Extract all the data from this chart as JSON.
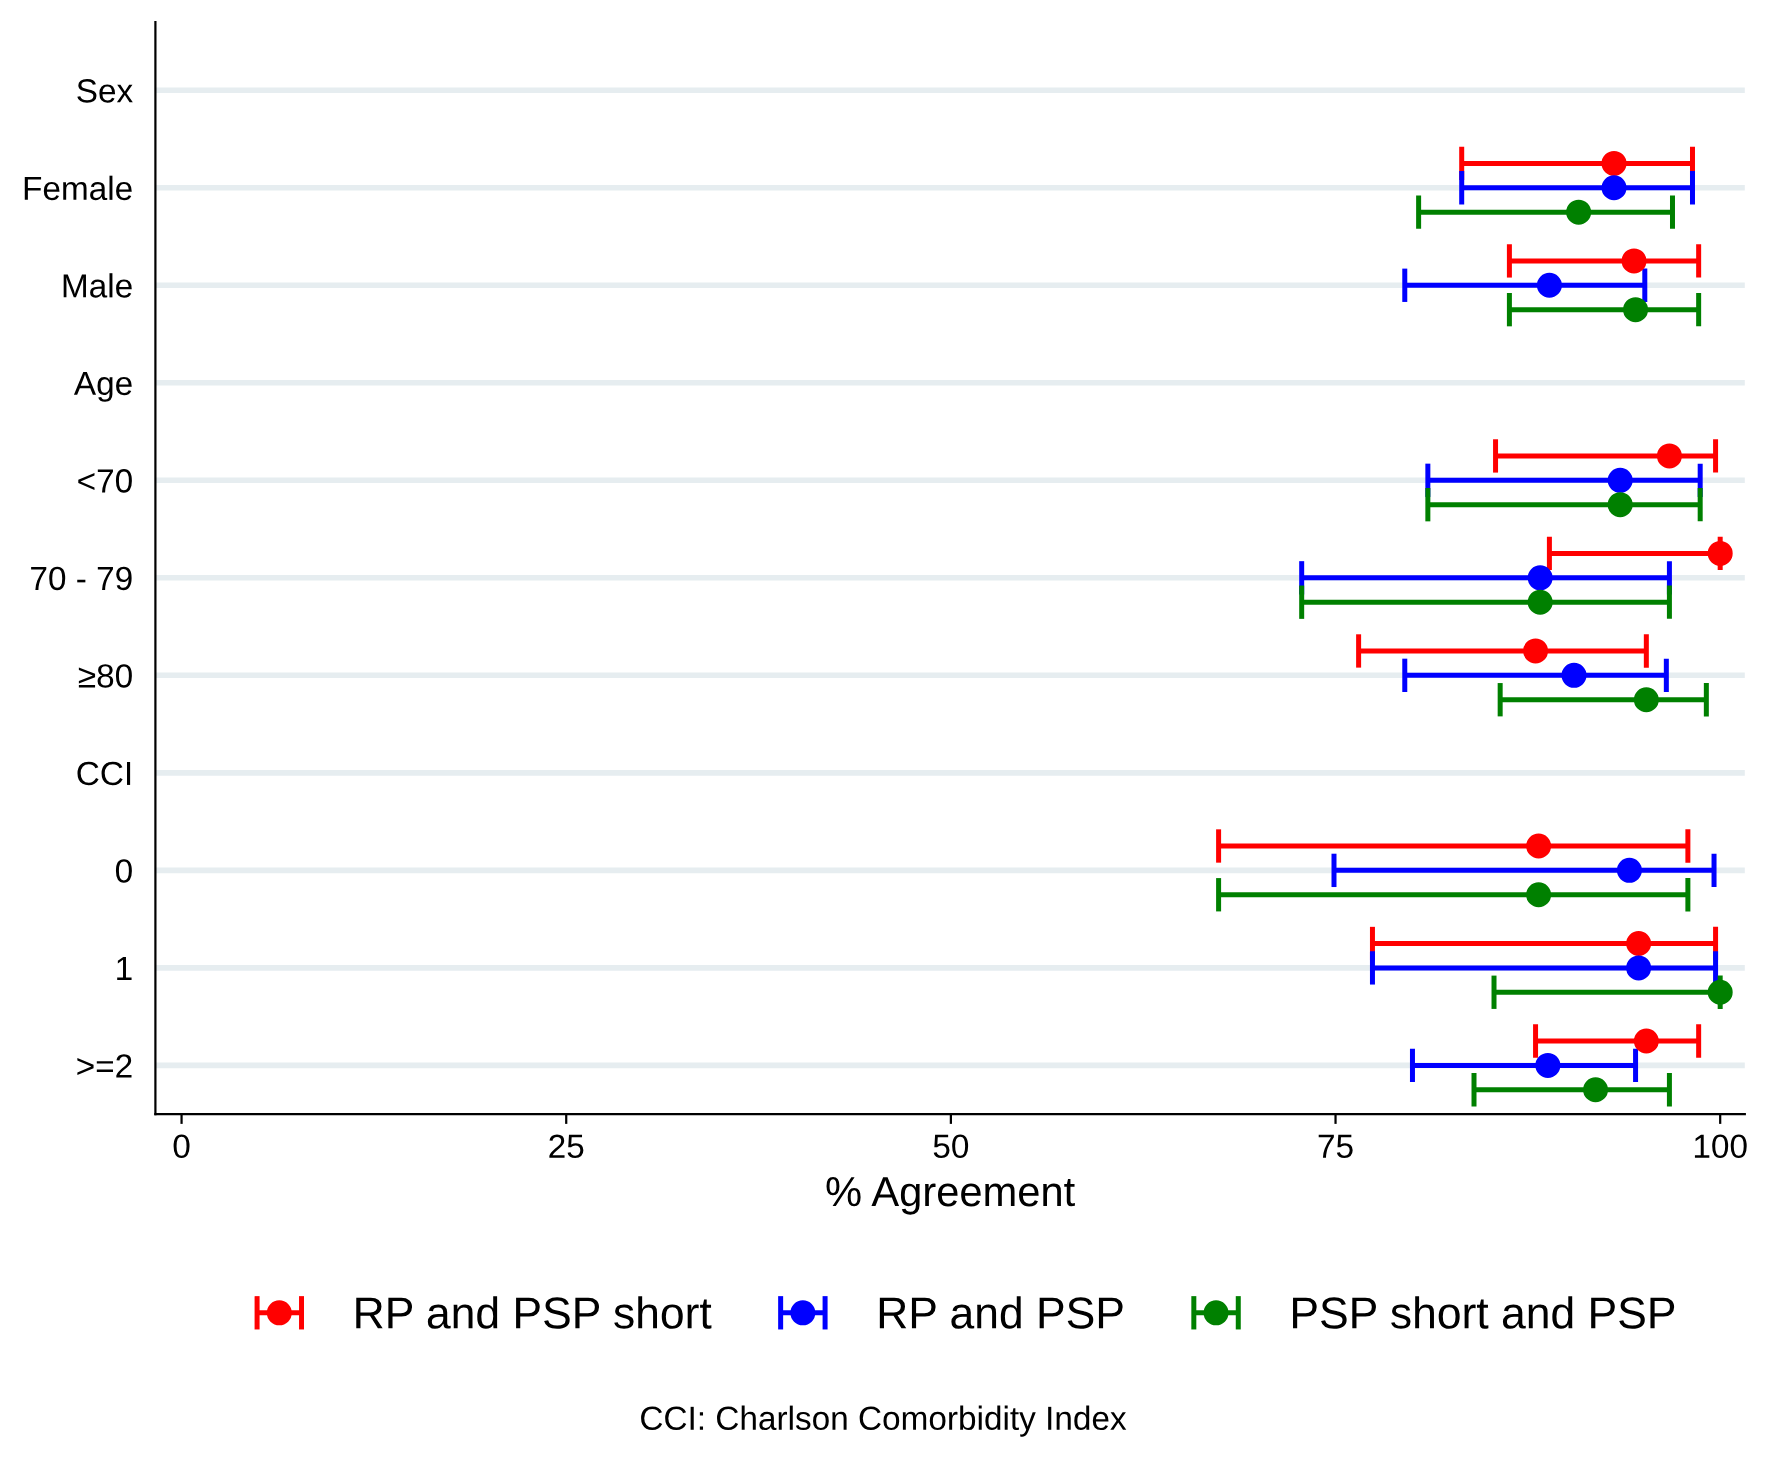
{
  "chart_data": {
    "type": "scatter",
    "orientation": "horizontal",
    "xlabel": "% Agreement",
    "categories": [
      "Sex",
      "Female",
      "Male",
      "Age",
      "<70",
      "70 - 79",
      "≥80",
      "CCI",
      "0",
      "1",
      ">=2"
    ],
    "series": [
      {
        "name": "RP and PSP short",
        "color": "#ff0000",
        "values": [
          null,
          93.1,
          94.4,
          null,
          96.7,
          100,
          88.0,
          null,
          88.2,
          94.7,
          95.2
        ],
        "errors": [
          null,
          [
            83.2,
            98.2
          ],
          [
            86.3,
            98.6
          ],
          null,
          [
            85.4,
            99.7
          ],
          [
            88.9,
            100
          ],
          [
            76.5,
            95.2
          ],
          null,
          [
            67.4,
            97.9
          ],
          [
            77.4,
            99.7
          ],
          [
            88.0,
            98.6
          ]
        ]
      },
      {
        "name": "RP and PSP",
        "color": "#0000ff",
        "values": [
          null,
          93.1,
          88.9,
          null,
          93.5,
          88.3,
          90.5,
          null,
          94.1,
          94.7,
          88.8
        ],
        "errors": [
          null,
          [
            83.2,
            98.2
          ],
          [
            79.5,
            95.1
          ],
          null,
          [
            81.0,
            98.7
          ],
          [
            72.8,
            96.7
          ],
          [
            79.5,
            96.5
          ],
          null,
          [
            74.9,
            99.6
          ],
          [
            77.4,
            99.7
          ],
          [
            80.0,
            94.5
          ]
        ]
      },
      {
        "name": "PSP short and PSP",
        "color": "#008000",
        "values": [
          null,
          90.8,
          94.5,
          null,
          93.5,
          88.3,
          95.2,
          null,
          88.2,
          100,
          91.9
        ],
        "errors": [
          null,
          [
            80.4,
            96.9
          ],
          [
            86.3,
            98.6
          ],
          null,
          [
            81.0,
            98.7
          ],
          [
            72.8,
            96.7
          ],
          [
            85.7,
            99.1
          ],
          null,
          [
            67.4,
            97.9
          ],
          [
            85.3,
            100
          ],
          [
            84.0,
            96.7
          ]
        ]
      }
    ],
    "xlim": [
      -1.7,
      101.6
    ],
    "xticks": [
      0,
      25,
      50,
      75,
      100
    ],
    "grid": "y",
    "legend": "bottom",
    "marker": "circle",
    "annotations": [
      "CCI: Charlson Comorbidity Index"
    ]
  }
}
